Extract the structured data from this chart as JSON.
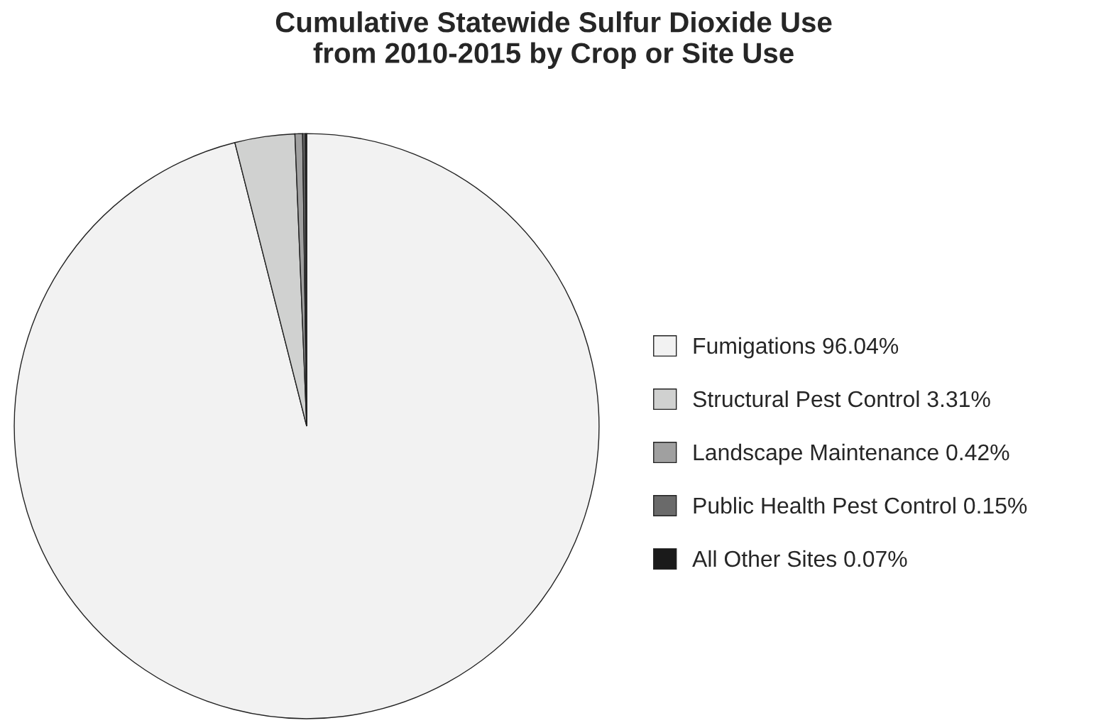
{
  "chart_data": {
    "type": "pie",
    "title": "Cumulative Statewide Sulfur Dioxide Use\nfrom 2010-2015 by Crop or Site Use",
    "categories": [
      "Fumigations",
      "Structural Pest Control",
      "Landscape Maintenance",
      "Public Health Pest Control",
      "All Other Sites"
    ],
    "values": [
      96.04,
      3.31,
      0.42,
      0.15,
      0.07
    ],
    "value_labels": [
      "96.04%",
      "3.31%",
      "0.42%",
      "0.15%",
      "0.07%"
    ],
    "colors": [
      "#f2f2f2",
      "#d0d1d0",
      "#a0a0a0",
      "#6a6a6a",
      "#1a1a1a"
    ],
    "legend": "right"
  }
}
